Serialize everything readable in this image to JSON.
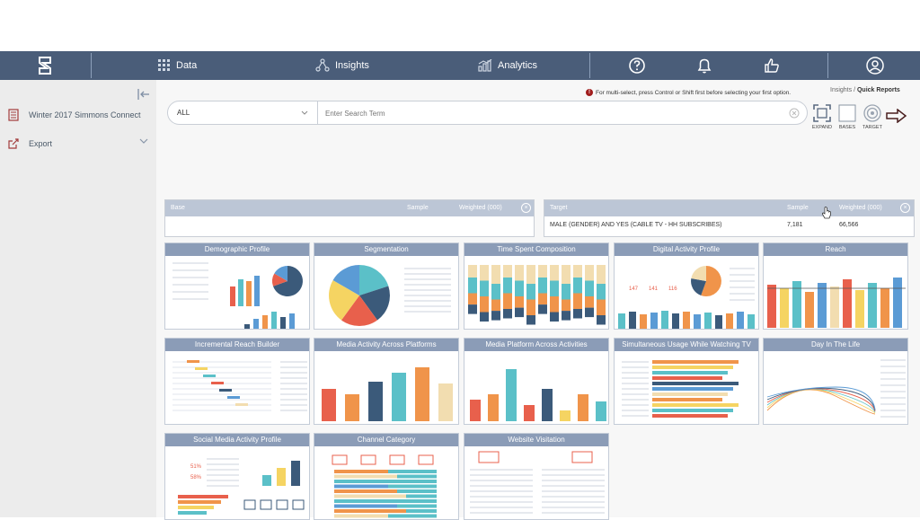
{
  "nav": {
    "data_label": "Data",
    "insights_label": "Insights",
    "analytics_label": "Analytics"
  },
  "sidebar": {
    "items": [
      {
        "label": "Winter 2017 Simmons Connect"
      },
      {
        "label": "Export"
      }
    ]
  },
  "main": {
    "hint": "For multi-select, press Control or Shift first before selecting your first option.",
    "breadcrumb": {
      "parent": "Insights",
      "sep": " / ",
      "current": "Quick Reports"
    },
    "filter": {
      "selected": "ALL",
      "search_placeholder": "Enter Search Term"
    },
    "tools": {
      "expand": "EXPAND",
      "bases": "BASES",
      "target": "TARGET"
    }
  },
  "base_panel": {
    "label": "Base",
    "sample": "Sample",
    "weighted": "Weighted (000)"
  },
  "target_panel": {
    "label": "Target",
    "sample": "Sample",
    "weighted": "Weighted (000)",
    "row": {
      "name": "MALE (GENDER) AND YES (CABLE TV - HH SUBSCRIBES)",
      "sample": "7,181",
      "weighted": "66,566"
    }
  },
  "cards": [
    {
      "title": "Demographic Profile"
    },
    {
      "title": "Segmentation"
    },
    {
      "title": "Time Spent Composition"
    },
    {
      "title": "Digital Activity Profile"
    },
    {
      "title": "Reach"
    },
    {
      "title": "Incremental Reach Builder"
    },
    {
      "title": "Media Activity Across Platforms"
    },
    {
      "title": "Media Platform Across Activities"
    },
    {
      "title": "Simultaneous Usage While Watching TV"
    },
    {
      "title": "Day In The Life"
    },
    {
      "title": "Social Media Activity Profile"
    },
    {
      "title": "Channel Category"
    },
    {
      "title": "Website Visitation"
    }
  ],
  "thumbs": {
    "digital_stats": [
      "147",
      "141",
      "116"
    ],
    "social_pct": [
      "51%",
      "58%"
    ]
  },
  "colors": {
    "nav": "#4a5d79",
    "card_header": "#8b9cb7",
    "blue": "#5b9bd5",
    "teal": "#5bc0c8",
    "red": "#e8604c",
    "yellow": "#f5d462",
    "orange": "#f0944a",
    "navy": "#3b5a7a",
    "tan": "#f2ddb0"
  }
}
